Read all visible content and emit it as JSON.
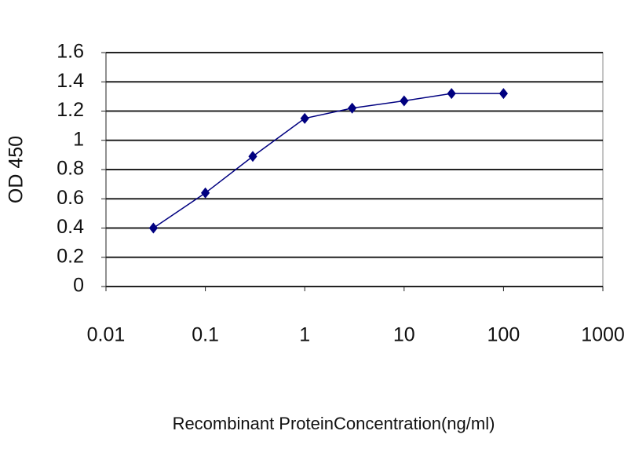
{
  "chart_data": {
    "type": "line",
    "x_label": "Recombinant ProteinConcentration(ng/ml)",
    "y_label": "OD 450",
    "x": [
      0.03,
      0.1,
      0.3,
      1,
      3,
      10,
      30,
      100
    ],
    "series": [
      {
        "color": "#000080",
        "values": [
          0.4,
          0.64,
          0.89,
          1.15,
          1.22,
          1.27,
          1.32,
          1.32
        ]
      }
    ],
    "xscale": "log",
    "xlim": [
      0.01,
      1000
    ],
    "xticks": [
      0.01,
      0.1,
      1,
      10,
      100,
      1000
    ],
    "ylim": [
      0,
      1.6
    ],
    "yticks": [
      0,
      0.2,
      0.4,
      0.6,
      0.8,
      1,
      1.2,
      1.4,
      1.6
    ],
    "grid": true
  }
}
